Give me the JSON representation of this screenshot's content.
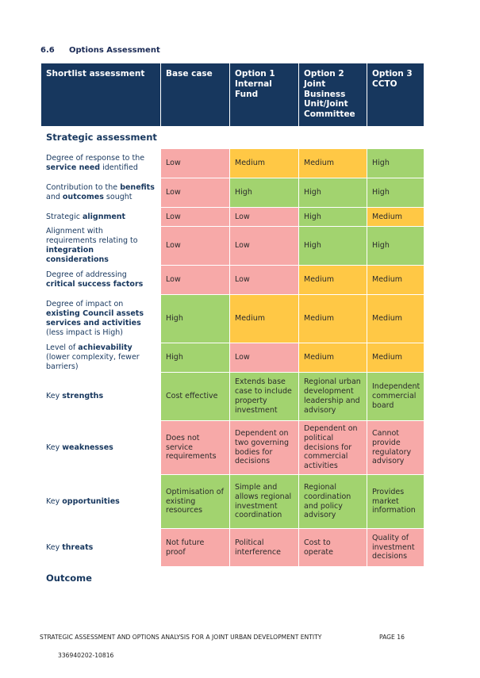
{
  "section": {
    "number": "6.6",
    "title": "Options Assessment"
  },
  "table": {
    "headers": [
      "Shortlist assessment",
      "Base case",
      "Option 1 Internal Fund",
      "Option 2 Joint Business Unit/Joint Committee",
      "Option 3 CCTO"
    ],
    "strategic_label": "Strategic assessment",
    "outcome_label": "Outcome",
    "rows": [
      {
        "label": [
          {
            "t": "Degree of response to the "
          },
          {
            "t": "service need",
            "b": true
          },
          {
            "t": " identified"
          }
        ],
        "values": [
          "Low",
          "Medium",
          "Medium",
          "High"
        ],
        "colors": [
          "Low",
          "Medium",
          "Medium",
          "High"
        ]
      },
      {
        "label": [
          {
            "t": "Contribution to the "
          },
          {
            "t": "benefits",
            "b": true
          },
          {
            "t": " and "
          },
          {
            "t": "outcomes",
            "b": true
          },
          {
            "t": " sought"
          }
        ],
        "values": [
          "Low",
          "High",
          "High",
          "High"
        ],
        "colors": [
          "Low",
          "High",
          "High",
          "High"
        ]
      },
      {
        "label": [
          {
            "t": "Strategic "
          },
          {
            "t": "alignment",
            "b": true
          }
        ],
        "values": [
          "Low",
          "Low",
          "High",
          "Medium"
        ],
        "colors": [
          "Low",
          "Low",
          "High",
          "Medium"
        ]
      },
      {
        "label": [
          {
            "t": "Alignment with requirements relating to "
          },
          {
            "t": "integration considerations",
            "b": true
          }
        ],
        "values": [
          "Low",
          "Low",
          "High",
          "High"
        ],
        "colors": [
          "Low",
          "Low",
          "High",
          "High"
        ]
      },
      {
        "label": [
          {
            "t": "Degree of addressing "
          },
          {
            "t": "critical success factors",
            "b": true
          }
        ],
        "values": [
          "Low",
          "Low",
          "Medium",
          "Medium"
        ],
        "colors": [
          "Low",
          "Low",
          "Medium",
          "Medium"
        ]
      },
      {
        "label": [
          {
            "t": "Degree of impact on "
          },
          {
            "t": "existing Council assets services and activities",
            "b": true
          },
          {
            "t": " (less impact is High)"
          }
        ],
        "values": [
          "High",
          "Medium",
          "Medium",
          "Medium"
        ],
        "colors": [
          "High",
          "Medium",
          "Medium",
          "Medium"
        ]
      },
      {
        "label": [
          {
            "t": "Level of "
          },
          {
            "t": "achievability",
            "b": true
          },
          {
            "t": " (lower complexity, fewer barriers)"
          }
        ],
        "values": [
          "High",
          "Low",
          "Medium",
          "Medium"
        ],
        "colors": [
          "High",
          "Low",
          "Medium",
          "Medium"
        ]
      },
      {
        "label": [
          {
            "t": "Key "
          },
          {
            "t": "strengths",
            "b": true
          }
        ],
        "values": [
          "Cost effective",
          "Extends base case to include property investment",
          "Regional urban development leadership and advisory",
          "Independent commercial board"
        ],
        "colors": [
          "High",
          "High",
          "High",
          "High"
        ]
      },
      {
        "label": [
          {
            "t": "Key "
          },
          {
            "t": "weaknesses",
            "b": true
          }
        ],
        "values": [
          "Does not service requirements",
          "Dependent on two governing bodies for decisions",
          "Dependent on political decisions for commercial activities",
          "Cannot provide regulatory advisory"
        ],
        "colors": [
          "Low",
          "Low",
          "Low",
          "Low"
        ]
      },
      {
        "label": [
          {
            "t": "Key "
          },
          {
            "t": "opportunities",
            "b": true
          }
        ],
        "values": [
          "Optimisation of existing resources",
          "Simple and allows regional investment coordination",
          "Regional coordination and policy advisory",
          "Provides market information"
        ],
        "colors": [
          "High",
          "High",
          "High",
          "High"
        ]
      },
      {
        "label": [
          {
            "t": "Key "
          },
          {
            "t": "threats",
            "b": true
          }
        ],
        "values": [
          "Not future proof",
          "Political interference",
          "Cost to operate",
          "Quality of investment decisions"
        ],
        "colors": [
          "Low",
          "Low",
          "Low",
          "Low"
        ]
      }
    ]
  },
  "footer": {
    "text": "STRATEGIC ASSESSMENT AND OPTIONS ANALYSIS FOR A JOINT URBAN DEVELOPMENT ENTITY",
    "page": "PAGE 16",
    "doc_id": "336940202-10816"
  }
}
